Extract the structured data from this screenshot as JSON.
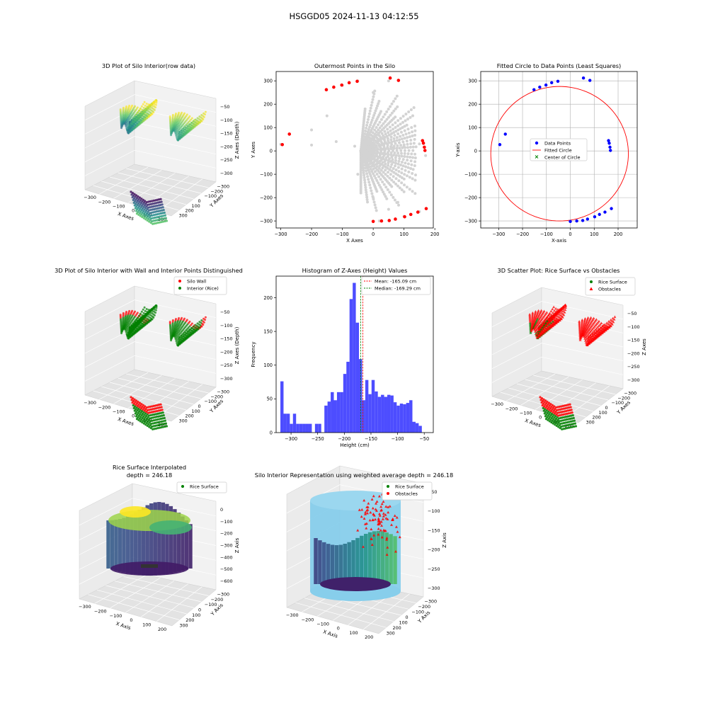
{
  "suptitle": "HSGGD05 2024-11-13 04:12:55",
  "chart_data": [
    {
      "id": "p1",
      "type": "scatter3d",
      "title": "3D Plot of Silo Interior(row data)",
      "xlabel": "X Axes",
      "ylabel": "Y Axes",
      "zlabel": "Z Axes (Depth)",
      "xticks": [
        "−300",
        "−200",
        "−100",
        "0",
        "100",
        "200"
      ],
      "yticks": [
        "−300",
        "−200",
        "−100",
        "0",
        "100",
        "200",
        "300"
      ],
      "zticks": [
        "−50",
        "−100",
        "−150",
        "−200",
        "−250",
        "−300"
      ],
      "colormap": "viridis"
    },
    {
      "id": "p2",
      "type": "scatter",
      "title": "Outermost Points in the Silo",
      "xlabel": "X Axes",
      "ylabel": "Y Axes",
      "xlim": [
        -315,
        195
      ],
      "ylim": [
        -330,
        340
      ],
      "xticks": [
        -300,
        -200,
        -100,
        0,
        100,
        200
      ],
      "yticks": [
        -300,
        -200,
        -100,
        0,
        100,
        200,
        300
      ],
      "series": [
        {
          "color": "#d3d3d3",
          "points": [
            [
              -300,
              28
            ],
            [
              -200,
              25
            ],
            [
              -120,
              40
            ],
            [
              -60,
              20
            ],
            [
              0,
              10
            ],
            [
              60,
              15
            ],
            [
              100,
              20
            ],
            [
              150,
              30
            ],
            [
              170,
              -20
            ],
            [
              -50,
              -100
            ],
            [
              0,
              -200
            ],
            [
              20,
              -300
            ],
            [
              50,
              -250
            ],
            [
              100,
              -280
            ],
            [
              150,
              -260
            ],
            [
              -100,
              280
            ],
            [
              -50,
              300
            ],
            [
              0,
              250
            ],
            [
              50,
              300
            ],
            [
              80,
              -220
            ],
            [
              -150,
              150
            ],
            [
              -200,
              90
            ]
          ]
        },
        {
          "color": "#ff0000",
          "points": [
            [
              -295,
              27
            ],
            [
              -272,
              72
            ],
            [
              -152,
              262
            ],
            [
              -128,
              273
            ],
            [
              -102,
              282
            ],
            [
              -78,
              292
            ],
            [
              -52,
              298
            ],
            [
              55,
              312
            ],
            [
              82,
              302
            ],
            [
              160,
              44
            ],
            [
              163,
              33
            ],
            [
              166,
              16
            ],
            [
              168,
              2
            ],
            [
              172,
              -247
            ],
            [
              145,
              -262
            ],
            [
              122,
              -272
            ],
            [
              102,
              -282
            ],
            [
              72,
              -292
            ],
            [
              52,
              -298
            ],
            [
              27,
              -300
            ],
            [
              0,
              -302
            ]
          ]
        }
      ]
    },
    {
      "id": "p3",
      "type": "scatter",
      "title": "Fitted Circle to Data Points (Least Squares)",
      "xlabel": "X-axis",
      "ylabel": "Y-axis",
      "xlim": [
        -375,
        280
      ],
      "ylim": [
        -330,
        340
      ],
      "xticks": [
        -300,
        -200,
        -100,
        0,
        100,
        200
      ],
      "yticks": [
        -300,
        -200,
        -100,
        0,
        100,
        200,
        300
      ],
      "grid": true,
      "points": [
        [
          -295,
          27
        ],
        [
          -272,
          72
        ],
        [
          -152,
          262
        ],
        [
          -128,
          273
        ],
        [
          -102,
          282
        ],
        [
          -78,
          292
        ],
        [
          -52,
          298
        ],
        [
          55,
          312
        ],
        [
          82,
          302
        ],
        [
          160,
          44
        ],
        [
          163,
          33
        ],
        [
          166,
          16
        ],
        [
          168,
          2
        ],
        [
          172,
          -247
        ],
        [
          145,
          -262
        ],
        [
          122,
          -272
        ],
        [
          102,
          -282
        ],
        [
          72,
          -292
        ],
        [
          52,
          -298
        ],
        [
          27,
          -300
        ],
        [
          0,
          -302
        ]
      ],
      "circle": {
        "cx": -45,
        "cy": -12,
        "r": 288
      },
      "center": [
        -45,
        -12
      ],
      "legend": {
        "position": "center",
        "entries": [
          "Data Points",
          "Fitted Circle",
          "Center of Circle"
        ]
      }
    },
    {
      "id": "p4",
      "type": "scatter3d",
      "title": "3D Plot of Silo Interior with Wall and Interior Points Distinguished",
      "xlabel": "X Axes",
      "ylabel": "Y Axes",
      "zlabel": "Z Axes (Depth)",
      "xticks": [
        "−300",
        "−200",
        "−100",
        "0",
        "100",
        "200"
      ],
      "yticks": [
        "−300",
        "−200",
        "−100",
        "0",
        "100",
        "200",
        "300"
      ],
      "zticks": [
        "−50",
        "−100",
        "−150",
        "−200",
        "−250",
        "−300"
      ],
      "legend": {
        "position": "upper right",
        "entries": [
          {
            "label": "Silo Wall",
            "color": "#ff0000"
          },
          {
            "label": "Interior (Rice)",
            "color": "#008000"
          }
        ]
      }
    },
    {
      "id": "p5",
      "type": "bar",
      "title": "Histogram of Z-Axes (Height) Values",
      "xlabel": "Height (cm)",
      "ylabel": "Frequency",
      "xlim": [
        -328,
        -33
      ],
      "ylim": [
        0,
        232
      ],
      "xticks": [
        -300,
        -250,
        -200,
        -150,
        -100,
        -50
      ],
      "yticks": [
        0,
        50,
        100,
        150,
        200
      ],
      "bin_start": -320,
      "bin_width": 5.9,
      "values": [
        76,
        28,
        28,
        13,
        28,
        13,
        13,
        13,
        13,
        13,
        0,
        13,
        13,
        0,
        40,
        46,
        60,
        48,
        60,
        60,
        87,
        105,
        198,
        222,
        163,
        109,
        48,
        78,
        57,
        78,
        61,
        53,
        56,
        53,
        56,
        55,
        45,
        40,
        43,
        42,
        44,
        48,
        16,
        14,
        10
      ],
      "mean": -165.09,
      "median": -169.29,
      "legend": {
        "position": "upper right",
        "entries": [
          {
            "label": "Mean: -165.09 cm",
            "color": "#ff0000"
          },
          {
            "label": "Median: -169.29 cm",
            "color": "#008000"
          }
        ]
      }
    },
    {
      "id": "p6",
      "type": "scatter3d",
      "title": "3D Scatter Plot: Rice Surface vs Obstacles",
      "xlabel": "X Axes",
      "ylabel": "Y Axes",
      "zlabel": "Z Axes",
      "xticks": [
        "−300",
        "−200",
        "−100",
        "0",
        "100",
        "200"
      ],
      "yticks": [
        "−300",
        "−200",
        "−100",
        "0",
        "100",
        "200",
        "300"
      ],
      "zticks": [
        "−50",
        "−100",
        "−150",
        "−200",
        "−250",
        "−300"
      ],
      "legend": {
        "position": "upper right",
        "entries": [
          {
            "label": "Rice Surface",
            "color": "#008000"
          },
          {
            "label": "Obstacles",
            "color": "#ff0000"
          }
        ]
      }
    },
    {
      "id": "p7",
      "type": "surface3d",
      "title": "Rice Surface Interpolated",
      "subtitle": "depth = 246.18",
      "xlabel": "X Axis",
      "ylabel": "Y Axis",
      "zlabel": "Z Axis",
      "xticks": [
        "−300",
        "−200",
        "−100",
        "0",
        "100",
        "200"
      ],
      "yticks": [
        "−300",
        "−200",
        "−100",
        "0",
        "100",
        "200",
        "300"
      ],
      "zticks": [
        "0",
        "−100",
        "−200",
        "−300",
        "−400",
        "−500",
        "−600"
      ],
      "legend": {
        "position": "upper right",
        "entries": [
          {
            "label": "Rice Surface",
            "color": "#008000"
          }
        ]
      }
    },
    {
      "id": "p8",
      "type": "surface3d",
      "title": "Silo Interior Representation using weighted average depth = 246.18",
      "xlabel": "X Axis",
      "ylabel": "Y Axis",
      "zlabel": "Z Axis",
      "xticks": [
        "−300",
        "−200",
        "−100",
        "0",
        "100",
        "200"
      ],
      "yticks": [
        "−300",
        "−200",
        "−100",
        "0",
        "100",
        "200",
        "300"
      ],
      "zticks": [
        "−50",
        "−100",
        "−150",
        "−200",
        "−250",
        "−300"
      ],
      "legend": {
        "position": "upper center",
        "entries": [
          {
            "label": "Rice Surface",
            "color": "#008000"
          },
          {
            "label": "Obstacles",
            "color": "#ff0000"
          }
        ]
      }
    }
  ]
}
